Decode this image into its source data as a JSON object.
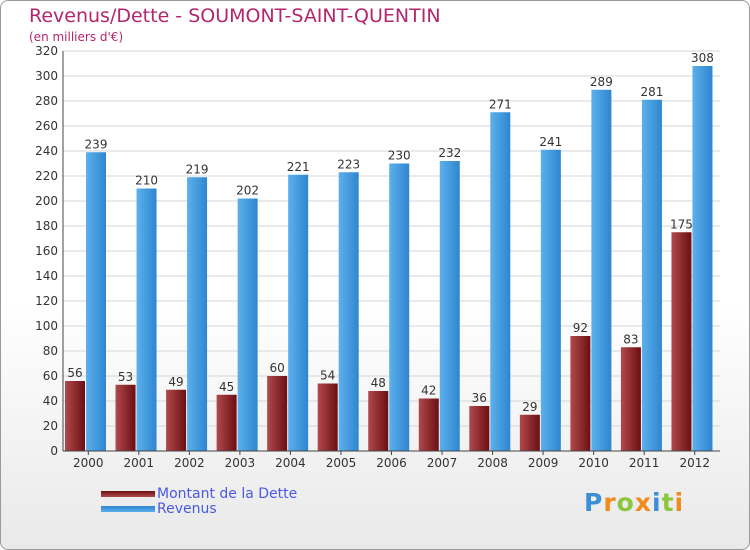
{
  "header": {
    "title": "Revenus/Dette - SOUMONT-SAINT-QUENTIN",
    "subtitle": "(en milliers d'€)"
  },
  "colors": {
    "title": "#b3266c",
    "debt": "#6b0e12",
    "debt_light": "#b04a4d",
    "revenue": "#2f86cf",
    "revenue_light": "#5cb0ec",
    "legend_text": "#4a5ae0"
  },
  "chart_data": {
    "type": "bar",
    "title": "Revenus/Dette - SOUMONT-SAINT-QUENTIN",
    "ylabel": "(en milliers d'€)",
    "xlabel": "",
    "ylim": [
      0,
      320
    ],
    "ytick_step": 20,
    "grid": true,
    "legend_position": "bottom-left",
    "categories": [
      "2000",
      "2001",
      "2002",
      "2003",
      "2004",
      "2005",
      "2006",
      "2007",
      "2008",
      "2009",
      "2010",
      "2011",
      "2012"
    ],
    "series": [
      {
        "name": "Montant de la Dette",
        "values": [
          56,
          53,
          49,
          45,
          60,
          54,
          48,
          42,
          36,
          29,
          92,
          83,
          175
        ]
      },
      {
        "name": "Revenus",
        "values": [
          239,
          210,
          219,
          202,
          221,
          223,
          230,
          232,
          271,
          241,
          289,
          281,
          308
        ]
      }
    ]
  },
  "legend": {
    "debt_label": "Montant de la Dette",
    "revenue_label": "Revenus"
  },
  "logo": {
    "letters": [
      "P",
      "r",
      "o",
      "x",
      "i",
      "t",
      "i"
    ],
    "letter_colors": [
      "#3a8fd6",
      "#f08c1c",
      "#8cc63f",
      "#f08c1c",
      "#3a8fd6",
      "#8cc63f",
      "#f08c1c"
    ]
  }
}
